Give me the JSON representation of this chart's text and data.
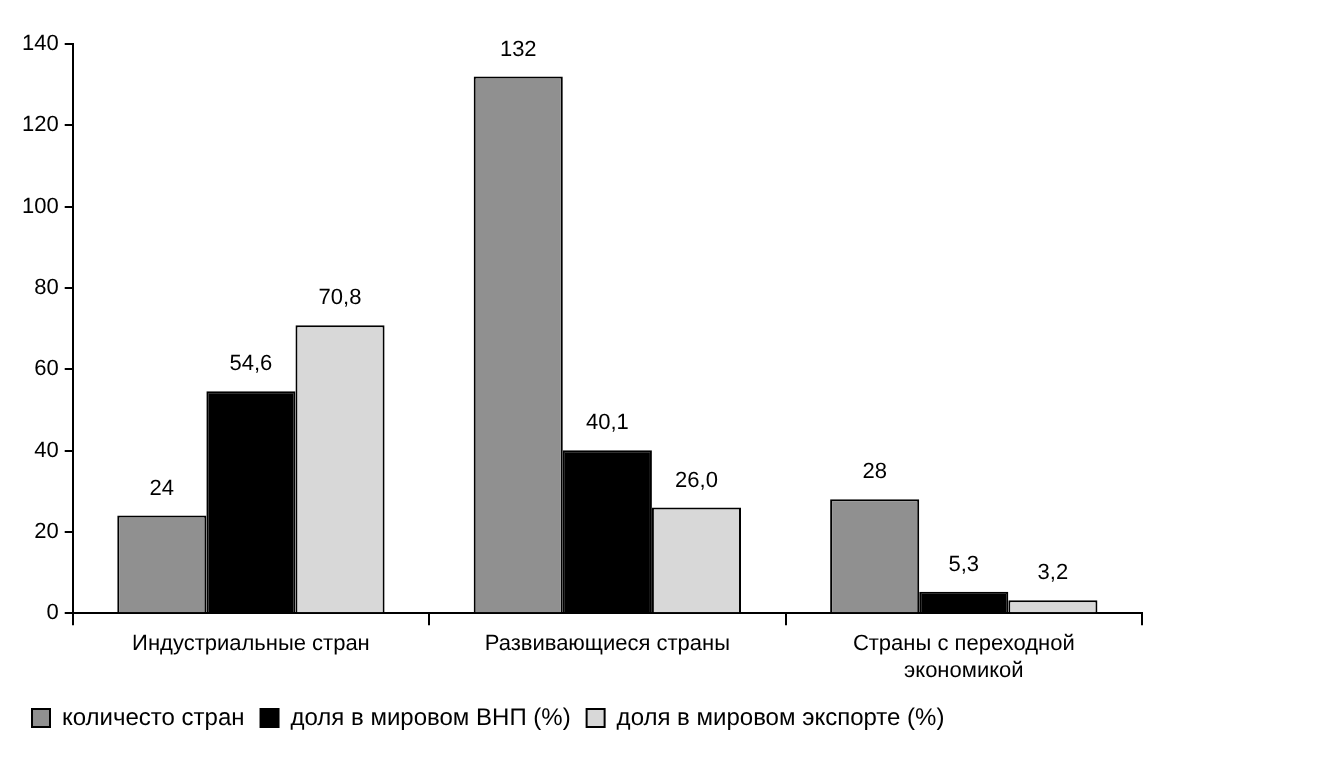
{
  "chart_data": {
    "type": "bar",
    "categories": [
      "Индустриальные стран",
      "Развивающиеся страны",
      "Страны с переходной экономикой"
    ],
    "series": [
      {
        "name": "количесто стран",
        "color": "#909090",
        "values": [
          24,
          132,
          28
        ],
        "value_labels": [
          "24",
          "132",
          "28"
        ]
      },
      {
        "name": "доля в мировом ВНП (%)",
        "color": "#000000",
        "values": [
          54.6,
          40.1,
          5.3
        ],
        "value_labels": [
          "54,6",
          "40,1",
          "5,3"
        ]
      },
      {
        "name": "доля в мировом экспорте (%)",
        "color": "#d8d8d8",
        "values": [
          70.8,
          26.0,
          3.2
        ],
        "value_labels": [
          "70,8",
          "26,0",
          "3,2"
        ]
      }
    ],
    "ylim": [
      0,
      140
    ],
    "yticks": [
      0,
      20,
      40,
      60,
      80,
      100,
      120,
      140
    ],
    "grid": false,
    "legend": "bottom left"
  }
}
